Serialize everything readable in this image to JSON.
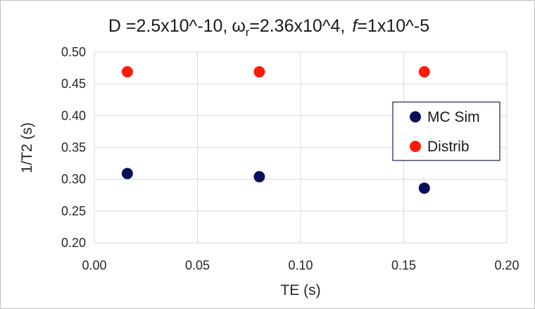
{
  "chart_data": {
    "type": "scatter",
    "title": {
      "D_part": "D =2.5x10^-10,",
      "omega_symbol": "ω",
      "omega_subscript": "r",
      "omega_value": "=2.36x10^4,",
      "f_symbol": "f",
      "f_value": "=1x10^-5"
    },
    "xlabel": "TE (s)",
    "ylabel": "1/T2 (s)",
    "xlim": [
      0.0,
      0.2
    ],
    "ylim": [
      0.2,
      0.5
    ],
    "x_ticks": [
      "0.00",
      "0.05",
      "0.10",
      "0.15",
      "0.20"
    ],
    "y_ticks": [
      "0.20",
      "0.25",
      "0.30",
      "0.35",
      "0.40",
      "0.45",
      "0.50"
    ],
    "grid": true,
    "legend_position": "right",
    "series": [
      {
        "name": "MC Sim",
        "color": "#0a0f5c",
        "points": [
          {
            "x": 0.016,
            "y": 0.309
          },
          {
            "x": 0.08,
            "y": 0.304
          },
          {
            "x": 0.16,
            "y": 0.286
          }
        ]
      },
      {
        "name": "Distrib",
        "color": "#ff1a0a",
        "points": [
          {
            "x": 0.016,
            "y": 0.469
          },
          {
            "x": 0.08,
            "y": 0.469
          },
          {
            "x": 0.16,
            "y": 0.469
          }
        ]
      }
    ]
  }
}
